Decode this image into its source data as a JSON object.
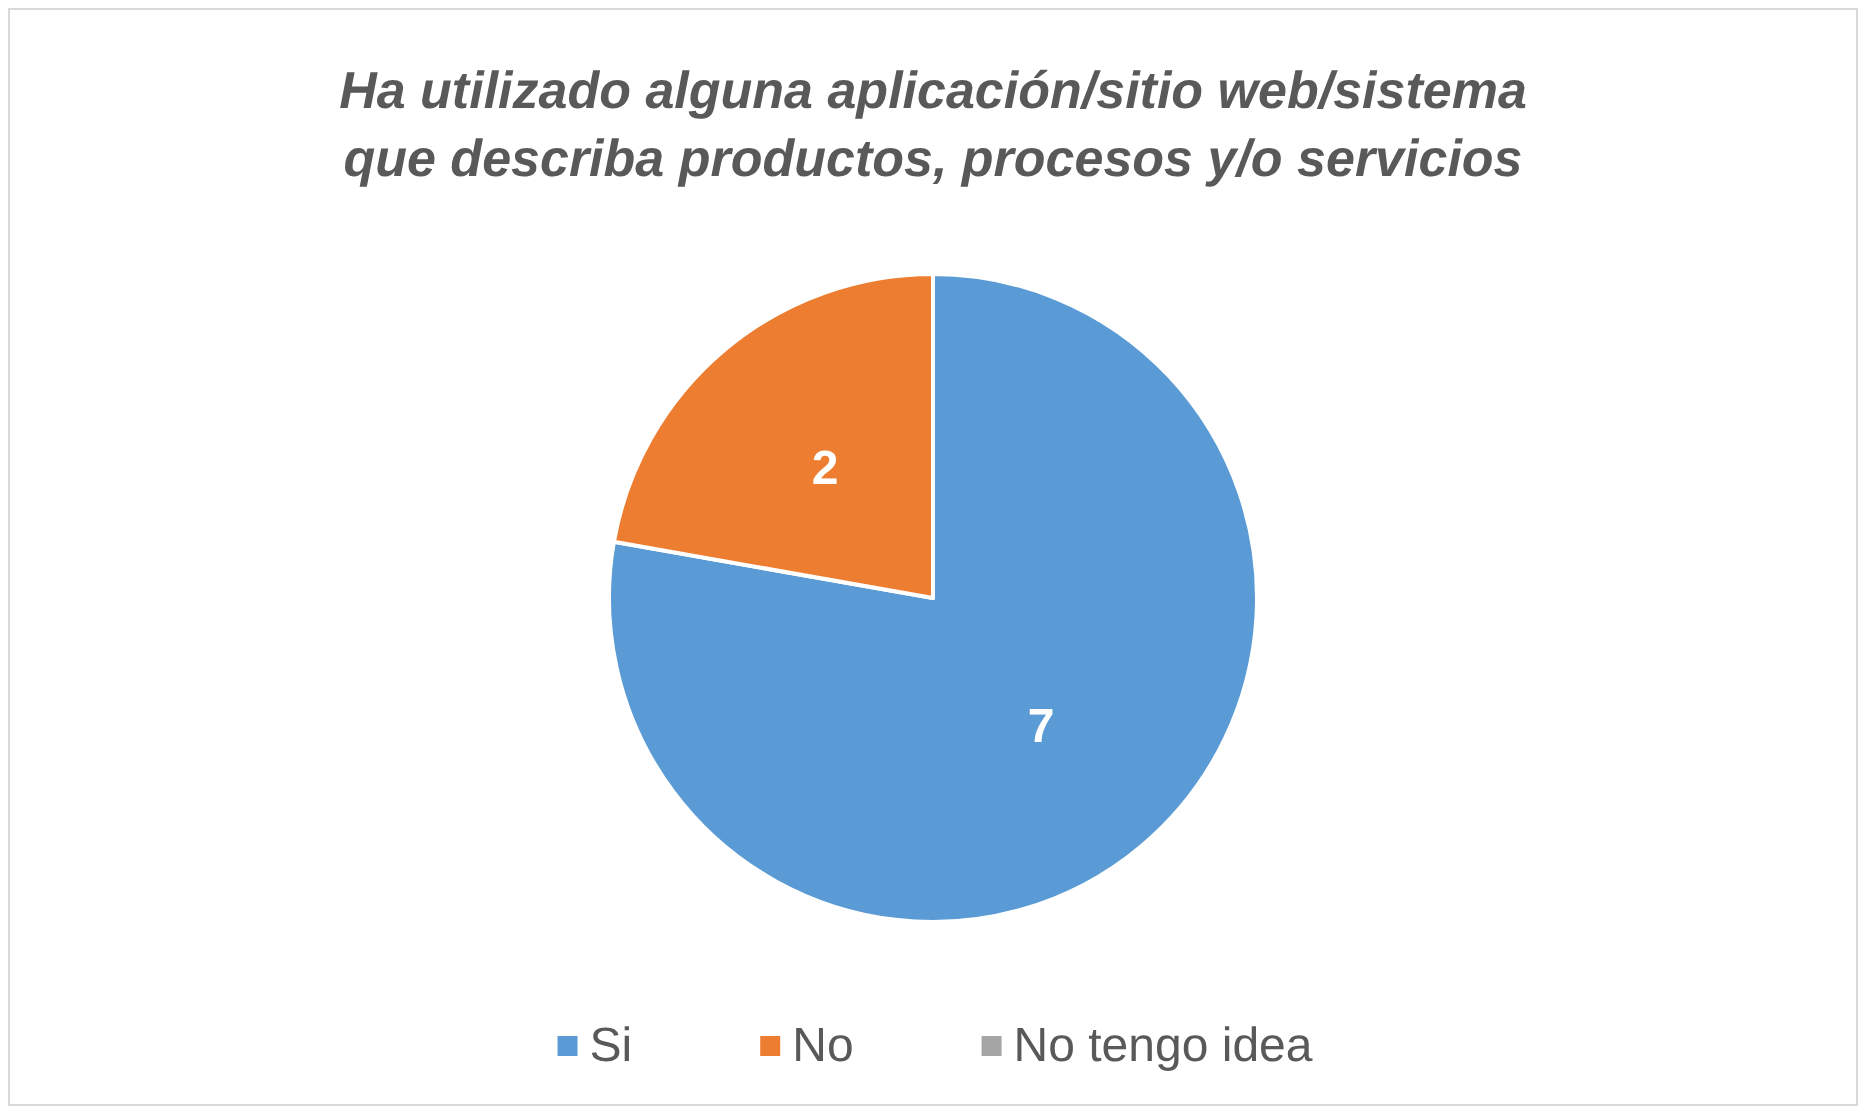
{
  "chart_data": {
    "type": "pie",
    "title": "Ha utilizado alguna aplicación/sitio web/sistema\nque describa productos, procesos y/o servicios",
    "categories": [
      "Si",
      "No",
      "No tengo idea"
    ],
    "values": [
      7,
      2,
      0
    ],
    "colors": [
      "#5b9bd5",
      "#ed7d31",
      "#a5a5a5"
    ],
    "value_labels": [
      "7",
      "2",
      null
    ],
    "legend": "bottom"
  }
}
